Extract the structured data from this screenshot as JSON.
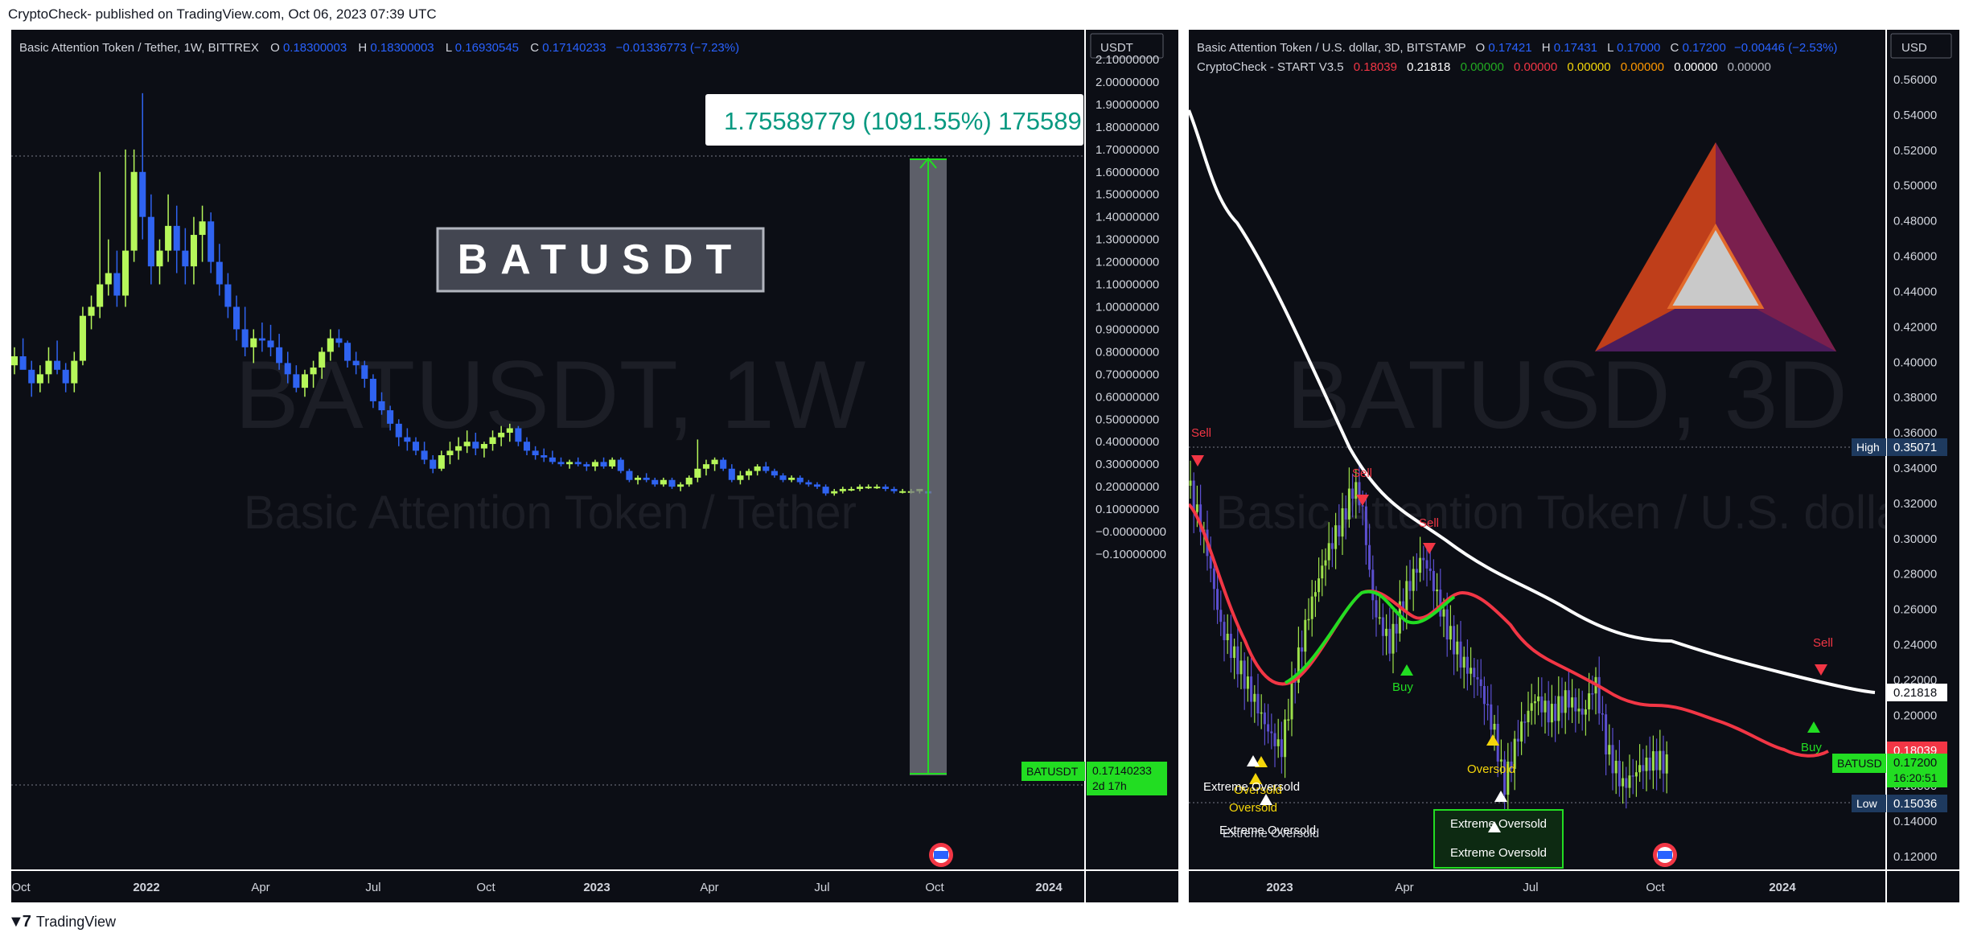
{
  "header": {
    "publisher": "CryptoCheck- published on TradingView.com, Oct 06, 2023 07:39 UTC"
  },
  "footer": {
    "brand": "TradingView"
  },
  "chart_data": [
    {
      "type": "candlestick",
      "title": "Basic Attention Token / Tether, 1W, BITTREX",
      "ohlc": {
        "O_label": "O",
        "O": "0.18300003",
        "H_label": "H",
        "H": "0.18300003",
        "L_label": "L",
        "L": "0.16930545",
        "C_label": "C",
        "C": "0.17140233",
        "change": "−0.01336773 (−7.23%)"
      },
      "currency": "USDT",
      "watermark_symbol": "BATUSDT, 1W",
      "watermark_name": "Basic Attention Token / Tether",
      "banner": "BATUSDT",
      "measure_label": "1.75589779 (1091.55%) 175589",
      "price_tag": {
        "symbol": "BATUSDT",
        "value": "0.17140233",
        "countdown": "2d 17h"
      },
      "y_ticks": [
        "2.10000000",
        "2.00000000",
        "1.90000000",
        "1.80000000",
        "1.70000000",
        "1.60000000",
        "1.50000000",
        "1.40000000",
        "1.30000000",
        "1.20000000",
        "1.10000000",
        "1.00000000",
        "0.90000000",
        "0.80000000",
        "0.70000000",
        "0.60000000",
        "0.50000000",
        "0.40000000",
        "0.30000000",
        "0.20000000",
        "0.10000000",
        "−0.00000000",
        "−0.10000000"
      ],
      "x_ticks": [
        "Oct",
        "2022",
        "Apr",
        "Jul",
        "Oct",
        "2023",
        "Apr",
        "Jul",
        "Oct",
        "2024"
      ],
      "ylim": [
        -0.1,
        2.1
      ],
      "candles": [
        [
          0.74,
          0.82,
          0.7,
          0.78
        ],
        [
          0.78,
          0.86,
          0.74,
          0.72
        ],
        [
          0.72,
          0.76,
          0.6,
          0.66
        ],
        [
          0.66,
          0.74,
          0.62,
          0.7
        ],
        [
          0.7,
          0.82,
          0.66,
          0.76
        ],
        [
          0.76,
          0.85,
          0.7,
          0.72
        ],
        [
          0.72,
          0.75,
          0.62,
          0.66
        ],
        [
          0.66,
          0.8,
          0.62,
          0.76
        ],
        [
          0.76,
          1.0,
          0.74,
          0.96
        ],
        [
          0.96,
          1.05,
          0.9,
          1.0
        ],
        [
          1.0,
          1.6,
          0.95,
          1.1
        ],
        [
          1.1,
          1.3,
          1.05,
          1.15
        ],
        [
          1.15,
          1.25,
          1.0,
          1.05
        ],
        [
          1.05,
          1.7,
          1.0,
          1.25
        ],
        [
          1.25,
          1.7,
          1.2,
          1.6
        ],
        [
          1.6,
          1.95,
          1.3,
          1.4
        ],
        [
          1.4,
          1.5,
          1.1,
          1.18
        ],
        [
          1.18,
          1.3,
          1.1,
          1.25
        ],
        [
          1.25,
          1.5,
          1.2,
          1.36
        ],
        [
          1.36,
          1.45,
          1.15,
          1.25
        ],
        [
          1.25,
          1.35,
          1.1,
          1.18
        ],
        [
          1.18,
          1.4,
          1.1,
          1.32
        ],
        [
          1.32,
          1.45,
          1.2,
          1.38
        ],
        [
          1.38,
          1.42,
          1.15,
          1.2
        ],
        [
          1.2,
          1.28,
          1.05,
          1.1
        ],
        [
          1.1,
          1.15,
          0.95,
          1.0
        ],
        [
          1.0,
          1.05,
          0.85,
          0.9
        ],
        [
          0.9,
          1.0,
          0.78,
          0.82
        ],
        [
          0.82,
          0.9,
          0.75,
          0.86
        ],
        [
          0.86,
          0.93,
          0.8,
          0.85
        ],
        [
          0.85,
          0.92,
          0.78,
          0.82
        ],
        [
          0.82,
          0.88,
          0.72,
          0.75
        ],
        [
          0.75,
          0.8,
          0.66,
          0.7
        ],
        [
          0.7,
          0.74,
          0.62,
          0.64
        ],
        [
          0.64,
          0.72,
          0.6,
          0.7
        ],
        [
          0.7,
          0.76,
          0.64,
          0.73
        ],
        [
          0.73,
          0.82,
          0.68,
          0.8
        ],
        [
          0.8,
          0.9,
          0.76,
          0.86
        ],
        [
          0.86,
          0.9,
          0.82,
          0.84
        ],
        [
          0.84,
          0.85,
          0.73,
          0.76
        ],
        [
          0.76,
          0.8,
          0.7,
          0.74
        ],
        [
          0.74,
          0.76,
          0.64,
          0.68
        ],
        [
          0.68,
          0.7,
          0.55,
          0.58
        ],
        [
          0.58,
          0.62,
          0.52,
          0.54
        ],
        [
          0.54,
          0.56,
          0.45,
          0.48
        ],
        [
          0.48,
          0.5,
          0.38,
          0.42
        ],
        [
          0.42,
          0.46,
          0.36,
          0.4
        ],
        [
          0.4,
          0.42,
          0.34,
          0.36
        ],
        [
          0.36,
          0.4,
          0.3,
          0.32
        ],
        [
          0.32,
          0.34,
          0.26,
          0.28
        ],
        [
          0.28,
          0.36,
          0.27,
          0.34
        ],
        [
          0.34,
          0.4,
          0.3,
          0.36
        ],
        [
          0.36,
          0.42,
          0.32,
          0.38
        ],
        [
          0.38,
          0.45,
          0.35,
          0.4
        ],
        [
          0.4,
          0.44,
          0.34,
          0.37
        ],
        [
          0.37,
          0.4,
          0.33,
          0.39
        ],
        [
          0.39,
          0.45,
          0.36,
          0.42
        ],
        [
          0.42,
          0.47,
          0.38,
          0.44
        ],
        [
          0.44,
          0.48,
          0.4,
          0.46
        ],
        [
          0.46,
          0.47,
          0.38,
          0.4
        ],
        [
          0.4,
          0.42,
          0.34,
          0.36
        ],
        [
          0.36,
          0.38,
          0.32,
          0.34
        ],
        [
          0.34,
          0.37,
          0.31,
          0.33
        ],
        [
          0.33,
          0.36,
          0.3,
          0.31
        ],
        [
          0.31,
          0.33,
          0.29,
          0.3
        ],
        [
          0.3,
          0.32,
          0.28,
          0.31
        ],
        [
          0.31,
          0.33,
          0.29,
          0.3
        ],
        [
          0.3,
          0.31,
          0.27,
          0.29
        ],
        [
          0.29,
          0.32,
          0.27,
          0.31
        ],
        [
          0.31,
          0.33,
          0.28,
          0.29
        ],
        [
          0.29,
          0.33,
          0.28,
          0.32
        ],
        [
          0.32,
          0.33,
          0.26,
          0.27
        ],
        [
          0.27,
          0.28,
          0.22,
          0.23
        ],
        [
          0.23,
          0.25,
          0.21,
          0.24
        ],
        [
          0.24,
          0.26,
          0.22,
          0.23
        ],
        [
          0.23,
          0.24,
          0.2,
          0.21
        ],
        [
          0.21,
          0.24,
          0.2,
          0.23
        ],
        [
          0.23,
          0.24,
          0.19,
          0.2
        ],
        [
          0.2,
          0.22,
          0.18,
          0.21
        ],
        [
          0.21,
          0.25,
          0.2,
          0.24
        ],
        [
          0.24,
          0.41,
          0.22,
          0.28
        ],
        [
          0.28,
          0.32,
          0.25,
          0.3
        ],
        [
          0.3,
          0.33,
          0.27,
          0.32
        ],
        [
          0.32,
          0.33,
          0.27,
          0.28
        ],
        [
          0.28,
          0.3,
          0.22,
          0.23
        ],
        [
          0.23,
          0.27,
          0.21,
          0.25
        ],
        [
          0.25,
          0.28,
          0.23,
          0.27
        ],
        [
          0.27,
          0.3,
          0.25,
          0.29
        ],
        [
          0.29,
          0.31,
          0.26,
          0.27
        ],
        [
          0.27,
          0.28,
          0.24,
          0.25
        ],
        [
          0.25,
          0.26,
          0.22,
          0.23
        ],
        [
          0.23,
          0.25,
          0.22,
          0.24
        ],
        [
          0.24,
          0.25,
          0.21,
          0.22
        ],
        [
          0.22,
          0.23,
          0.2,
          0.21
        ],
        [
          0.21,
          0.22,
          0.19,
          0.2
        ],
        [
          0.2,
          0.21,
          0.16,
          0.17
        ],
        [
          0.17,
          0.19,
          0.16,
          0.18
        ],
        [
          0.18,
          0.2,
          0.17,
          0.19
        ],
        [
          0.19,
          0.2,
          0.18,
          0.19
        ],
        [
          0.19,
          0.21,
          0.18,
          0.2
        ],
        [
          0.2,
          0.21,
          0.19,
          0.2
        ],
        [
          0.2,
          0.21,
          0.19,
          0.2
        ],
        [
          0.2,
          0.21,
          0.18,
          0.19
        ],
        [
          0.19,
          0.2,
          0.17,
          0.18
        ],
        [
          0.18,
          0.19,
          0.17,
          0.18
        ],
        [
          0.18,
          0.19,
          0.17,
          0.18
        ],
        [
          0.18,
          0.19,
          0.17,
          0.19
        ],
        [
          0.18,
          0.18,
          0.17,
          0.17
        ]
      ]
    },
    {
      "type": "candlestick",
      "title": "Basic Attention Token / U.S. dollar, 3D, BITSTAMP",
      "ohlc": {
        "O_label": "O",
        "O": "0.17421",
        "H_label": "H",
        "H": "0.17431",
        "L_label": "L",
        "L": "0.17000",
        "C_label": "C",
        "C": "0.17200",
        "change": "−0.00446 (−2.53%)"
      },
      "currency": "USD",
      "indicator": {
        "name": "CryptoCheck - START V3.5",
        "values": [
          {
            "v": "0.18039",
            "color": "#f23645"
          },
          {
            "v": "0.21818",
            "color": "#ffffff"
          },
          {
            "v": "0.00000",
            "color": "#22ab22"
          },
          {
            "v": "0.00000",
            "color": "#f23645"
          },
          {
            "v": "0.00000",
            "color": "#f5d60a"
          },
          {
            "v": "0.00000",
            "color": "#ff9800"
          },
          {
            "v": "0.00000",
            "color": "#ffffff"
          },
          {
            "v": "0.00000",
            "color": "#b2b5be"
          }
        ]
      },
      "watermark_symbol": "BATUSD, 3D",
      "watermark_name": "Basic Attention Token / U.S. dollar",
      "y_ticks": [
        "0.56000",
        "0.54000",
        "0.52000",
        "0.50000",
        "0.48000",
        "0.46000",
        "0.44000",
        "0.42000",
        "0.40000",
        "0.38000",
        "0.36000",
        "0.34000",
        "0.32000",
        "0.30000",
        "0.28000",
        "0.26000",
        "0.24000",
        "0.22000",
        "0.20000",
        "0.18000",
        "0.16000",
        "0.14000",
        "0.12000"
      ],
      "x_ticks": [
        "2023",
        "Apr",
        "Jul",
        "Oct",
        "2024"
      ],
      "ylim": [
        0.108,
        0.573
      ],
      "labels": {
        "high": "High",
        "high_value": "0.35071",
        "low": "Low",
        "low_value": "0.15036",
        "white_ma": "0.21818",
        "red_ma": "0.18039",
        "symbol": "BATUSD",
        "price": "0.17200",
        "countdown": "16:20:51"
      },
      "signals": {
        "sell": "Sell",
        "buy": "Buy",
        "oversold": "Oversold",
        "extreme_oversold": "Extreme Oversold"
      },
      "extreme_box": [
        "Extreme Oversold",
        "Extreme Oversold"
      ]
    }
  ]
}
